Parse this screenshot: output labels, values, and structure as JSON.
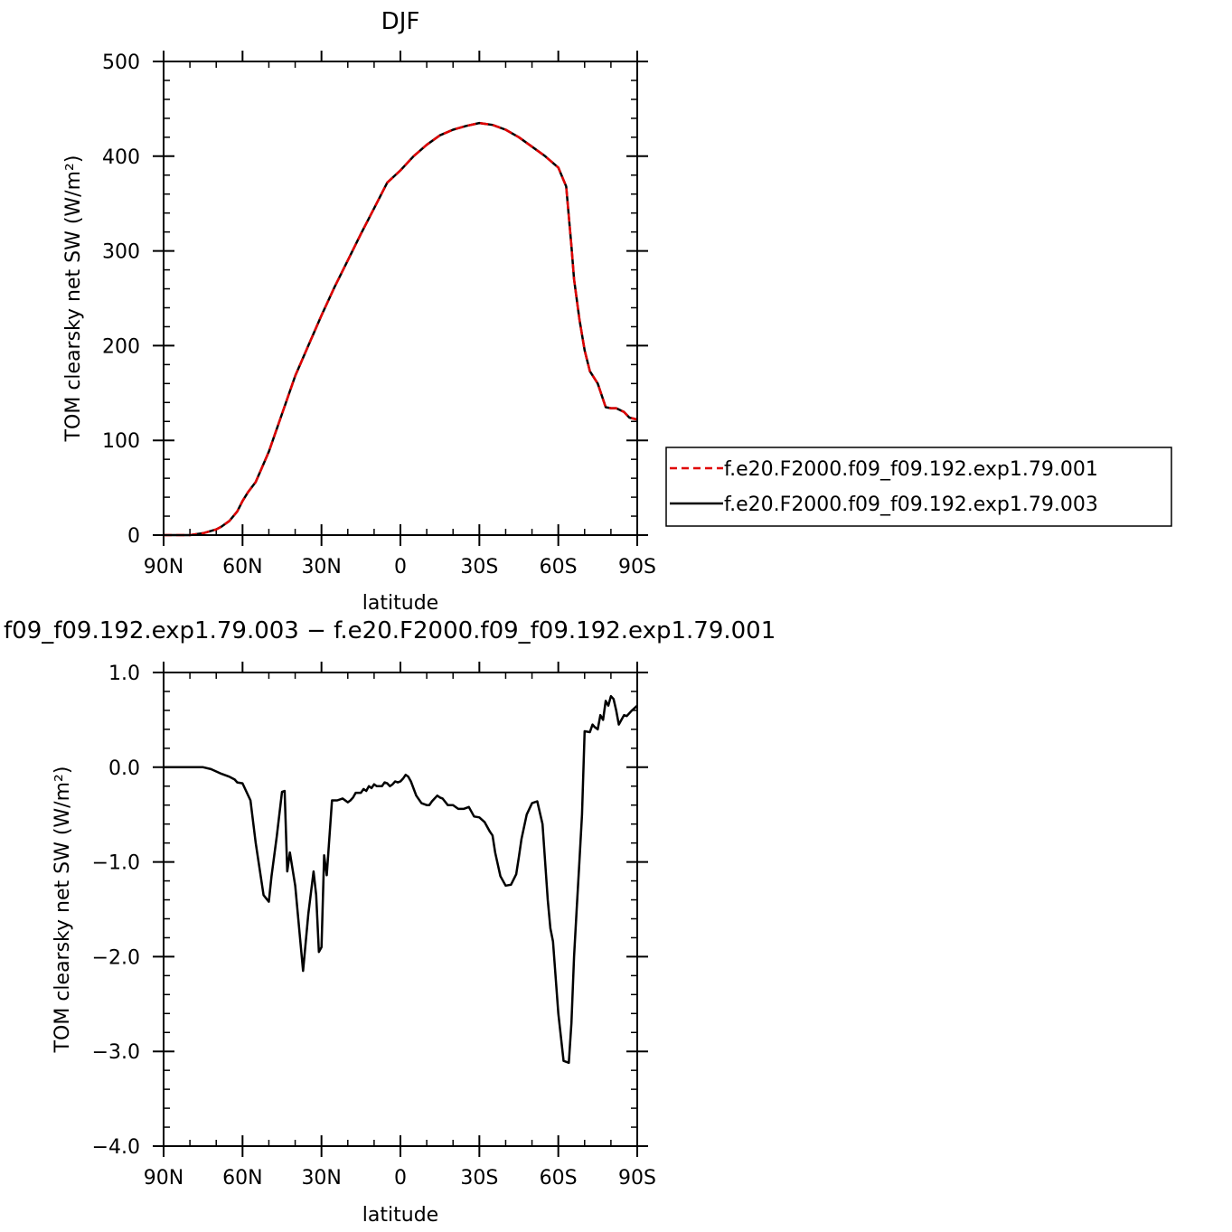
{
  "colors": {
    "exp001": "#e00000",
    "exp003": "#000000",
    "axis": "#000000"
  },
  "chart_data": [
    {
      "type": "line",
      "title": "DJF",
      "xlabel": "latitude",
      "ylabel": "TOM clearsky net SW (W/m²)",
      "xlim": [
        90,
        -90
      ],
      "ylim": [
        0,
        500
      ],
      "xticks": [
        {
          "value": 90,
          "label": "90N"
        },
        {
          "value": 60,
          "label": "60N"
        },
        {
          "value": 30,
          "label": "30N"
        },
        {
          "value": 0,
          "label": "0"
        },
        {
          "value": -30,
          "label": "30S"
        },
        {
          "value": -60,
          "label": "60S"
        },
        {
          "value": -90,
          "label": "90S"
        }
      ],
      "yticks": [
        {
          "value": 0,
          "label": "0"
        },
        {
          "value": 100,
          "label": "100"
        },
        {
          "value": 200,
          "label": "200"
        },
        {
          "value": 300,
          "label": "300"
        },
        {
          "value": 400,
          "label": "400"
        },
        {
          "value": 500,
          "label": "500"
        }
      ],
      "legend": {
        "placement": "right"
      },
      "series": [
        {
          "name": "f.e20.F2000.f09_f09.192.exp1.79.001",
          "color_key": "exp001",
          "dash": true,
          "x": [
            90,
            80,
            75,
            70,
            68,
            65,
            62,
            60,
            58,
            55,
            50,
            45,
            40,
            35,
            30,
            25,
            20,
            15,
            10,
            5,
            0,
            -5,
            -10,
            -15,
            -20,
            -25,
            -30,
            -35,
            -40,
            -45,
            -50,
            -55,
            -60,
            -63,
            -65,
            -66,
            -68,
            -70,
            -72,
            -75,
            -78,
            -80,
            -82,
            -85,
            -87,
            -90
          ],
          "y": [
            0,
            0,
            2,
            6,
            9,
            15,
            25,
            36,
            45,
            56,
            88,
            128,
            168,
            200,
            232,
            262,
            290,
            318,
            345,
            372,
            385,
            400,
            412,
            422,
            428,
            432,
            435,
            433,
            428,
            420,
            410,
            400,
            388,
            368,
            305,
            270,
            228,
            195,
            173,
            160,
            135,
            134,
            134,
            130,
            124,
            122
          ]
        },
        {
          "name": "f.e20.F2000.f09_f09.192.exp1.79.003",
          "color_key": "exp003",
          "dash": false,
          "x": [
            90,
            80,
            75,
            70,
            68,
            65,
            62,
            60,
            58,
            55,
            50,
            45,
            40,
            35,
            30,
            25,
            20,
            15,
            10,
            5,
            0,
            -5,
            -10,
            -15,
            -20,
            -25,
            -30,
            -35,
            -40,
            -45,
            -50,
            -55,
            -60,
            -63,
            -65,
            -66,
            -68,
            -70,
            -72,
            -75,
            -78,
            -80,
            -82,
            -85,
            -87,
            -90
          ],
          "y": [
            0,
            0,
            2,
            6,
            9,
            15,
            25,
            36,
            45,
            56,
            88,
            128,
            168,
            200,
            232,
            262,
            290,
            318,
            345,
            372,
            385,
            400,
            412,
            422,
            428,
            432,
            435,
            433,
            428,
            420,
            410,
            400,
            388,
            368,
            305,
            270,
            228,
            195,
            173,
            160,
            135,
            134,
            134,
            130,
            124,
            122
          ]
        }
      ]
    },
    {
      "type": "line",
      "title": "f09_f09.192.exp1.79.003 − f.e20.F2000.f09_f09.192.exp1.79.001",
      "xlabel": "latitude",
      "ylabel": "TOM clearsky net SW (W/m²)",
      "xlim": [
        90,
        -90
      ],
      "ylim": [
        -4.0,
        1.0
      ],
      "xticks": [
        {
          "value": 90,
          "label": "90N"
        },
        {
          "value": 60,
          "label": "60N"
        },
        {
          "value": 30,
          "label": "30N"
        },
        {
          "value": 0,
          "label": "0"
        },
        {
          "value": -30,
          "label": "30S"
        },
        {
          "value": -60,
          "label": "60S"
        },
        {
          "value": -90,
          "label": "90S"
        }
      ],
      "yticks": [
        {
          "value": 1.0,
          "label": "1.0"
        },
        {
          "value": 0.0,
          "label": "0.0"
        },
        {
          "value": -1.0,
          "label": "−1.0"
        },
        {
          "value": -2.0,
          "label": "−2.0"
        },
        {
          "value": -3.0,
          "label": "−3.0"
        },
        {
          "value": -4.0,
          "label": "−4.0"
        }
      ],
      "series": [
        {
          "color_key": "exp003",
          "dash": false,
          "x": [
            90,
            75,
            72,
            68,
            65,
            63,
            62,
            60,
            57,
            55,
            52,
            50,
            49,
            47,
            45,
            44,
            43,
            42,
            40,
            38,
            37,
            35,
            33,
            32,
            31,
            30,
            29,
            28,
            26,
            24,
            22,
            20,
            19,
            18,
            17,
            15,
            14,
            13,
            12,
            11,
            10,
            9,
            8,
            7,
            6,
            5,
            4,
            3,
            2,
            1,
            0,
            -1,
            -2,
            -3,
            -4,
            -6,
            -8,
            -10,
            -11,
            -12,
            -14,
            -15,
            -16,
            -18,
            -20,
            -22,
            -24,
            -26,
            -28,
            -30,
            -32,
            -34,
            -35,
            -36,
            -38,
            -40,
            -42,
            -44,
            -45,
            -46,
            -48,
            -50,
            -52,
            -54,
            -55,
            -56,
            -57,
            -58,
            -60,
            -62,
            -64,
            -65,
            -66,
            -67,
            -68,
            -69,
            -70,
            -72,
            -73,
            -74,
            -75,
            -76,
            -77,
            -78,
            -79,
            -80,
            -81,
            -82,
            -83,
            -84,
            -85,
            -86,
            -88,
            -90
          ],
          "y": [
            0,
            0,
            -0.02,
            -0.07,
            -0.1,
            -0.13,
            -0.16,
            -0.17,
            -0.35,
            -0.8,
            -1.35,
            -1.42,
            -1.15,
            -0.73,
            -0.26,
            -0.25,
            -1.1,
            -0.9,
            -1.25,
            -1.85,
            -2.15,
            -1.55,
            -1.1,
            -1.35,
            -1.95,
            -1.9,
            -0.93,
            -1.14,
            -0.35,
            -0.35,
            -0.33,
            -0.37,
            -0.35,
            -0.32,
            -0.27,
            -0.27,
            -0.23,
            -0.25,
            -0.2,
            -0.22,
            -0.18,
            -0.2,
            -0.2,
            -0.2,
            -0.16,
            -0.17,
            -0.2,
            -0.18,
            -0.15,
            -0.16,
            -0.15,
            -0.12,
            -0.08,
            -0.1,
            -0.15,
            -0.3,
            -0.38,
            -0.4,
            -0.4,
            -0.36,
            -0.3,
            -0.32,
            -0.33,
            -0.4,
            -0.4,
            -0.44,
            -0.44,
            -0.42,
            -0.52,
            -0.53,
            -0.58,
            -0.68,
            -0.72,
            -0.9,
            -1.15,
            -1.25,
            -1.24,
            -1.13,
            -0.95,
            -0.76,
            -0.5,
            -0.38,
            -0.36,
            -0.6,
            -1.0,
            -1.4,
            -1.7,
            -1.84,
            -2.6,
            -3.1,
            -3.12,
            -2.7,
            -2.0,
            -1.5,
            -1.0,
            -0.5,
            0.38,
            0.37,
            0.45,
            0.42,
            0.4,
            0.55,
            0.5,
            0.7,
            0.65,
            0.75,
            0.72,
            0.6,
            0.45,
            0.5,
            0.55,
            0.54,
            0.6,
            0.65
          ]
        }
      ]
    }
  ]
}
